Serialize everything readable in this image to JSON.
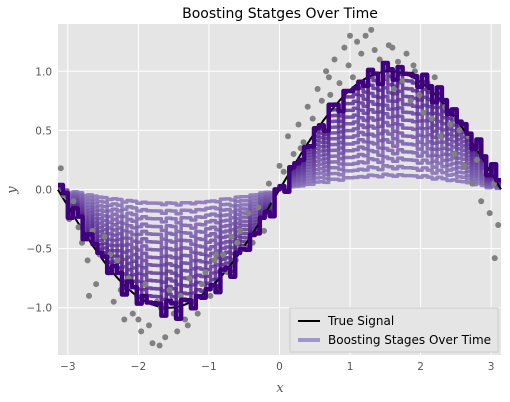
{
  "chart_data": {
    "type": "line",
    "title": "Boosting Statges Over Time",
    "xlabel": "x",
    "ylabel": "y",
    "xlim": [
      -3.14,
      3.14
    ],
    "ylim": [
      -1.4,
      1.4
    ],
    "xticks": [
      -3,
      -2,
      -1,
      0,
      1,
      2,
      3
    ],
    "xtick_labels": [
      "−3",
      "−2",
      "−1",
      "0",
      "1",
      "2",
      "3"
    ],
    "yticks": [
      -1.0,
      -0.5,
      0.0,
      0.5,
      1.0
    ],
    "ytick_labels": [
      "−1.0",
      "−0.5",
      "0.0",
      "0.5",
      "1.0"
    ],
    "grid": true,
    "legend_position": "bottom-right",
    "background_color": "#e5e5e5",
    "series": [
      {
        "name": "True Signal",
        "kind": "line",
        "color": "#000000",
        "function": "sin(x)"
      },
      {
        "name": "Boosting Stages Over Time",
        "kind": "line",
        "color": "#9d97cc",
        "final_stage_color": "#3f007d",
        "stage_count": 13,
        "description_hidden": true
      }
    ],
    "scatter": {
      "color": "#808080",
      "x": [
        -3.1,
        -3.05,
        -2.98,
        -2.92,
        -2.85,
        -2.8,
        -2.72,
        -2.65,
        -2.6,
        -2.55,
        -2.48,
        -2.42,
        -2.35,
        -2.3,
        -2.25,
        -2.2,
        -2.14,
        -2.08,
        -2.02,
        -1.96,
        -1.9,
        -1.85,
        -1.8,
        -1.74,
        -1.68,
        -1.62,
        -1.56,
        -1.5,
        -1.45,
        -1.4,
        -1.34,
        -1.28,
        -1.22,
        -1.16,
        -1.1,
        -1.05,
        -0.98,
        -0.92,
        -0.86,
        -0.8,
        -0.74,
        -0.68,
        -0.62,
        -0.56,
        -0.5,
        -0.44,
        -0.38,
        -0.3,
        -0.22,
        -0.15,
        -0.08,
        0.0,
        0.06,
        0.12,
        0.2,
        0.27,
        0.34,
        0.4,
        0.47,
        0.54,
        0.6,
        0.66,
        0.72,
        0.78,
        0.85,
        0.92,
        0.98,
        1.04,
        1.1,
        1.16,
        1.22,
        1.28,
        1.35,
        1.42,
        1.48,
        1.55,
        1.62,
        1.68,
        1.74,
        1.8,
        1.86,
        1.92,
        1.98,
        2.04,
        2.1,
        2.16,
        2.22,
        2.28,
        2.35,
        2.42,
        2.48,
        2.55,
        2.62,
        2.68,
        2.74,
        2.8,
        2.86,
        2.92,
        2.98,
        3.04,
        3.1,
        -2.7,
        -2.4,
        -2.0,
        -1.7,
        -1.3,
        -0.9,
        -0.6,
        0.3,
        0.7,
        1.0,
        1.3,
        1.6,
        1.9,
        2.2,
        2.5,
        2.8,
        3.05
      ],
      "y": [
        0.18,
        -0.05,
        -0.25,
        -0.1,
        -0.32,
        -0.45,
        -0.6,
        -0.35,
        -0.8,
        -0.55,
        -0.4,
        -0.7,
        -0.95,
        -0.6,
        -0.85,
        -1.1,
        -0.75,
        -1.05,
        -0.9,
        -1.2,
        -0.8,
        -1.15,
        -1.3,
        -0.95,
        -1.0,
        -1.25,
        -0.85,
        -1.05,
        -1.2,
        -0.9,
        -1.1,
        -0.75,
        -0.95,
        -1.05,
        -0.8,
        -0.7,
        -0.9,
        -0.6,
        -0.85,
        -0.55,
        -0.7,
        -0.4,
        -0.6,
        -0.35,
        -0.5,
        -0.2,
        -0.45,
        -0.15,
        -0.35,
        0.05,
        -0.1,
        0.2,
        0.15,
        0.45,
        0.3,
        0.55,
        0.4,
        0.7,
        0.6,
        0.85,
        0.75,
        1.0,
        0.8,
        1.1,
        0.9,
        1.2,
        1.05,
        0.95,
        1.25,
        1.15,
        1.3,
        1.0,
        1.18,
        1.1,
        0.95,
        1.22,
        0.85,
        1.08,
        0.92,
        1.15,
        0.75,
        1.0,
        0.8,
        0.65,
        0.9,
        0.6,
        0.75,
        0.45,
        0.7,
        0.55,
        0.3,
        0.5,
        0.2,
        0.45,
        0.05,
        0.25,
        -0.1,
        0.15,
        -0.2,
        0.05,
        -0.3,
        -0.9,
        -0.55,
        -1.1,
        -1.32,
        -1.15,
        -0.55,
        -0.45,
        0.35,
        0.95,
        1.3,
        1.35,
        1.2,
        1.05,
        0.95,
        0.6,
        0.35,
        -0.58
      ]
    }
  }
}
